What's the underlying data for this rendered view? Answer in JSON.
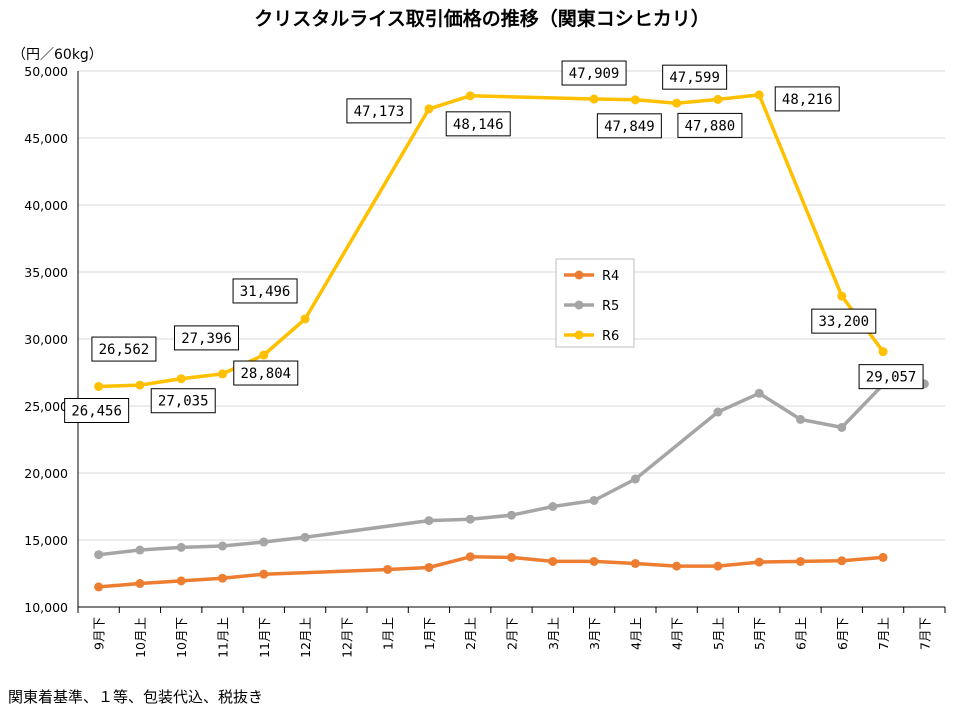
{
  "chart_data": {
    "type": "line",
    "title": "クリスタルライス取引価格の推移（関東コシヒカリ）",
    "unit": "（円／60kg）",
    "footnote": "関東着基準、１等、包装代込、税抜き",
    "ylim": [
      10000,
      50000
    ],
    "yticks": [
      "10,000",
      "15,000",
      "20,000",
      "25,000",
      "30,000",
      "35,000",
      "40,000",
      "45,000",
      "50,000"
    ],
    "categories": [
      "9月下",
      "10月上",
      "10月下",
      "11月上",
      "11月下",
      "12月上",
      "12月下",
      "1月上",
      "1月下",
      "2月上",
      "2月下",
      "3月上",
      "3月下",
      "4月上",
      "4月下",
      "5月上",
      "5月下",
      "6月上",
      "6月下",
      "7月上",
      "7月下"
    ],
    "grid": true,
    "legend_position": "center-right",
    "series": [
      {
        "name": "R4",
        "color": "#ED7D31",
        "values": [
          11500,
          11750,
          11950,
          12150,
          12450,
          null,
          null,
          12800,
          12950,
          13750,
          13700,
          13400,
          13400,
          13250,
          13050,
          13050,
          13350,
          13400,
          13450,
          13700,
          null
        ]
      },
      {
        "name": "R5",
        "color": "#A5A5A5",
        "values": [
          13900,
          14250,
          14450,
          14550,
          14850,
          15200,
          null,
          null,
          16450,
          16550,
          16850,
          17500,
          17950,
          19550,
          null,
          24550,
          25950,
          24000,
          23400,
          26600,
          26650
        ]
      },
      {
        "name": "R6",
        "color": "#FFC000",
        "values": [
          26456,
          26562,
          27035,
          27396,
          28804,
          31496,
          null,
          null,
          47173,
          48146,
          null,
          null,
          47909,
          47849,
          47599,
          47880,
          48216,
          null,
          33200,
          29057,
          null
        ]
      }
    ],
    "data_labels": [
      "26,456",
      "26,562",
      "27,035",
      "27,396",
      "28,804",
      "31,496",
      "47,173",
      "48,146",
      "47,909",
      "47,849",
      "47,599",
      "47,880",
      "48,216",
      "33,200",
      "29,057"
    ]
  }
}
